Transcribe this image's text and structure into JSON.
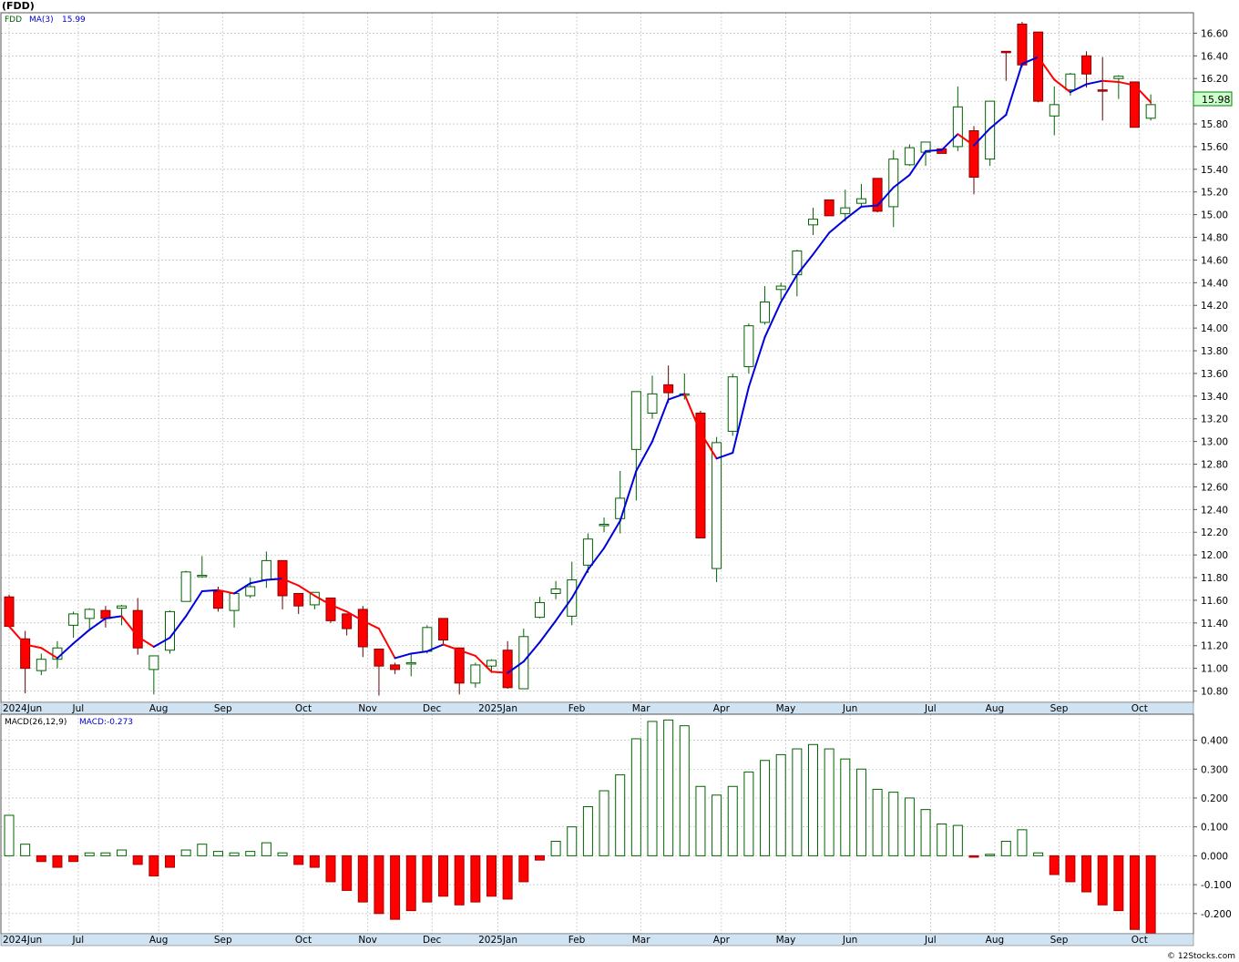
{
  "symbol_label": "(FDD)",
  "price_legend": {
    "symbol": "FDD",
    "ma_label": "MA(3)",
    "ma_value": "15.99"
  },
  "last_price_tag": "15.98",
  "macd_legend": {
    "label": "MACD(26,12,9)",
    "value": "MACD:-0.273"
  },
  "watermark": "© 12Stocks.com",
  "colors": {
    "up_candle": "#006400",
    "down_candle": "#ff0000",
    "ma_up": "#0000dd",
    "ma_down": "#ff0000",
    "macd_up": "#006400",
    "macd_down": "#ff0000",
    "grid": "#b4b4b4",
    "axis_band": "#cfe3f3"
  },
  "chart_data": [
    {
      "type": "candlestick",
      "title": "(FDD)",
      "interval": "weekly",
      "series_name": "FDD",
      "ma_period": 3,
      "ylim": [
        10.7,
        16.78
      ],
      "y_ticks": [
        "10.80",
        "11.00",
        "11.20",
        "11.40",
        "11.60",
        "11.80",
        "12.00",
        "12.20",
        "12.40",
        "12.60",
        "12.80",
        "13.00",
        "13.20",
        "13.40",
        "13.60",
        "13.80",
        "14.00",
        "14.20",
        "14.40",
        "14.60",
        "14.80",
        "15.00",
        "15.20",
        "15.40",
        "15.60",
        "15.80",
        "16.00",
        "16.20",
        "16.40",
        "16.60"
      ],
      "x_labels": [
        {
          "label": "2024Jun",
          "index": 0
        },
        {
          "label": "Jul",
          "index": 4.3
        },
        {
          "label": "Aug",
          "index": 9.3
        },
        {
          "label": "Sep",
          "index": 13.3
        },
        {
          "label": "Oct",
          "index": 18.3
        },
        {
          "label": "Nov",
          "index": 22.3
        },
        {
          "label": "Dec",
          "index": 26.3
        },
        {
          "label": "2025Jan",
          "index": 30.4
        },
        {
          "label": "Feb",
          "index": 35.3
        },
        {
          "label": "Mar",
          "index": 39.3
        },
        {
          "label": "Apr",
          "index": 44.3
        },
        {
          "label": "May",
          "index": 48.3
        },
        {
          "label": "Jun",
          "index": 52.3
        },
        {
          "label": "Jul",
          "index": 57.3
        },
        {
          "label": "Aug",
          "index": 61.3
        },
        {
          "label": "Sep",
          "index": 65.3
        },
        {
          "label": "Oct",
          "index": 70.3
        }
      ],
      "candles": [
        [
          11.63,
          11.65,
          11.36,
          11.37
        ],
        [
          11.26,
          11.33,
          10.78,
          11.0
        ],
        [
          10.98,
          11.13,
          10.94,
          11.08
        ],
        [
          11.08,
          11.24,
          11.0,
          11.18
        ],
        [
          11.38,
          11.5,
          11.27,
          11.48
        ],
        [
          11.44,
          11.53,
          11.33,
          11.52
        ],
        [
          11.51,
          11.55,
          11.36,
          11.44
        ],
        [
          11.53,
          11.56,
          11.38,
          11.55
        ],
        [
          11.51,
          11.62,
          11.12,
          11.18
        ],
        [
          10.99,
          11.11,
          10.77,
          11.11
        ],
        [
          11.16,
          11.51,
          11.13,
          11.5
        ],
        [
          11.59,
          11.86,
          11.59,
          11.85
        ],
        [
          11.82,
          11.99,
          11.8,
          11.82
        ],
        [
          11.68,
          11.72,
          11.5,
          11.53
        ],
        [
          11.51,
          11.67,
          11.36,
          11.66
        ],
        [
          11.64,
          11.8,
          11.62,
          11.72
        ],
        [
          11.78,
          12.03,
          11.71,
          11.95
        ],
        [
          11.95,
          11.95,
          11.52,
          11.64
        ],
        [
          11.66,
          11.66,
          11.48,
          11.55
        ],
        [
          11.56,
          11.67,
          11.52,
          11.67
        ],
        [
          11.62,
          11.62,
          11.4,
          11.42
        ],
        [
          11.48,
          11.48,
          11.29,
          11.35
        ],
        [
          11.52,
          11.55,
          11.1,
          11.19
        ],
        [
          11.17,
          11.17,
          10.76,
          11.02
        ],
        [
          11.03,
          11.05,
          10.95,
          10.99
        ],
        [
          11.04,
          11.13,
          10.93,
          11.05
        ],
        [
          11.15,
          11.38,
          11.13,
          11.36
        ],
        [
          11.44,
          11.44,
          11.2,
          11.25
        ],
        [
          11.18,
          11.18,
          10.77,
          10.87
        ],
        [
          10.87,
          11.05,
          10.83,
          11.03
        ],
        [
          11.02,
          11.08,
          10.96,
          11.07
        ],
        [
          11.16,
          11.24,
          10.82,
          10.83
        ],
        [
          10.82,
          11.35,
          10.82,
          11.28
        ],
        [
          11.45,
          11.63,
          11.44,
          11.58
        ],
        [
          11.66,
          11.77,
          11.61,
          11.7
        ],
        [
          11.46,
          11.94,
          11.38,
          11.78
        ],
        [
          11.91,
          12.19,
          11.84,
          12.14
        ],
        [
          12.26,
          12.33,
          12.2,
          12.27
        ],
        [
          12.32,
          12.74,
          12.19,
          12.5
        ],
        [
          12.93,
          13.44,
          12.48,
          13.44
        ],
        [
          13.25,
          13.58,
          13.2,
          13.42
        ],
        [
          13.5,
          13.67,
          13.34,
          13.43
        ],
        [
          13.42,
          13.6,
          13.37,
          13.42
        ],
        [
          13.25,
          13.27,
          12.15,
          12.15
        ],
        [
          11.88,
          13.04,
          11.76,
          12.99
        ],
        [
          13.09,
          13.6,
          13.05,
          13.57
        ],
        [
          13.66,
          14.04,
          13.6,
          14.02
        ],
        [
          14.05,
          14.37,
          14.03,
          14.23
        ],
        [
          14.34,
          14.4,
          14.25,
          14.37
        ],
        [
          14.47,
          14.69,
          14.28,
          14.68
        ],
        [
          14.91,
          15.06,
          14.82,
          14.96
        ],
        [
          15.13,
          15.13,
          14.99,
          14.99
        ],
        [
          15.01,
          15.22,
          14.94,
          15.06
        ],
        [
          15.1,
          15.27,
          15.07,
          15.14
        ],
        [
          15.32,
          15.32,
          15.02,
          15.03
        ],
        [
          15.07,
          15.57,
          14.89,
          15.49
        ],
        [
          15.44,
          15.62,
          15.43,
          15.59
        ],
        [
          15.55,
          15.64,
          15.43,
          15.64
        ],
        [
          15.58,
          15.58,
          15.54,
          15.54
        ],
        [
          15.6,
          16.13,
          15.56,
          15.95
        ],
        [
          15.74,
          15.78,
          15.18,
          15.33
        ],
        [
          15.49,
          16.0,
          15.43,
          16.0
        ],
        [
          16.44,
          16.44,
          16.18,
          16.43
        ],
        [
          16.68,
          16.7,
          16.3,
          16.32
        ],
        [
          16.61,
          16.61,
          15.99,
          16.0
        ],
        [
          15.87,
          16.13,
          15.7,
          15.97
        ],
        [
          16.1,
          16.25,
          16.05,
          16.24
        ],
        [
          16.4,
          16.44,
          16.12,
          16.24
        ],
        [
          16.1,
          16.39,
          15.83,
          16.09
        ],
        [
          16.2,
          16.23,
          16.02,
          16.22
        ],
        [
          16.17,
          16.17,
          15.77,
          15.77
        ],
        [
          15.85,
          16.06,
          15.83,
          15.97
        ]
      ],
      "ma": [
        11.37,
        11.21,
        11.18,
        11.09,
        11.22,
        11.34,
        11.44,
        11.46,
        11.28,
        11.19,
        11.27,
        11.46,
        11.68,
        11.69,
        11.66,
        11.75,
        11.78,
        11.79,
        11.73,
        11.64,
        11.56,
        11.5,
        11.42,
        11.35,
        11.09,
        11.13,
        11.15,
        11.21,
        11.16,
        11.11,
        10.97,
        10.96,
        11.06,
        11.23,
        11.42,
        11.62,
        11.87,
        12.06,
        12.3,
        12.74,
        13.0,
        13.37,
        13.42,
        13.08,
        12.85,
        12.9,
        13.48,
        13.92,
        14.23,
        14.47,
        14.65,
        14.84,
        14.96,
        15.07,
        15.08,
        15.24,
        15.35,
        15.56,
        15.57,
        15.71,
        15.61,
        15.76,
        15.88,
        16.33,
        16.39,
        16.19,
        16.08,
        16.15,
        16.18,
        16.17,
        16.14,
        15.99
      ]
    },
    {
      "type": "bar",
      "title": "MACD(26,12,9)",
      "series_name": "MACD",
      "ylim": [
        -0.27,
        0.49
      ],
      "y_ticks": [
        "-0.200",
        "-0.100",
        "0.000",
        "0.100",
        "0.200",
        "0.300",
        "0.400"
      ],
      "values": [
        0.14,
        0.04,
        -0.02,
        -0.04,
        -0.02,
        0.01,
        0.01,
        0.02,
        -0.03,
        -0.07,
        -0.04,
        0.02,
        0.04,
        0.015,
        0.01,
        0.015,
        0.045,
        0.01,
        -0.03,
        -0.04,
        -0.09,
        -0.12,
        -0.16,
        -0.2,
        -0.22,
        -0.19,
        -0.16,
        -0.14,
        -0.17,
        -0.16,
        -0.14,
        -0.15,
        -0.09,
        -0.015,
        0.05,
        0.1,
        0.17,
        0.225,
        0.28,
        0.405,
        0.465,
        0.47,
        0.45,
        0.24,
        0.21,
        0.24,
        0.29,
        0.33,
        0.35,
        0.37,
        0.385,
        0.37,
        0.335,
        0.3,
        0.23,
        0.22,
        0.2,
        0.16,
        0.11,
        0.105,
        -0.005,
        0.005,
        0.05,
        0.09,
        0.01,
        -0.065,
        -0.09,
        -0.125,
        -0.17,
        -0.19,
        -0.255,
        -0.273
      ]
    }
  ]
}
